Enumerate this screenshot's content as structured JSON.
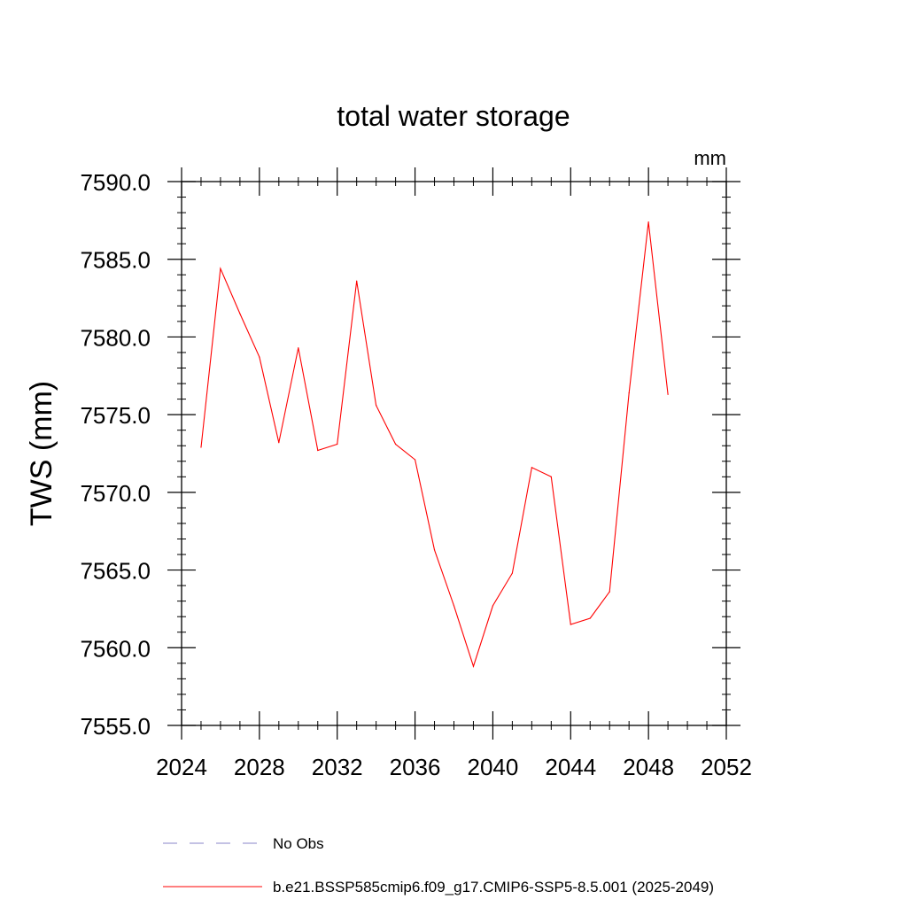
{
  "chart_data": {
    "type": "line",
    "title": "total water storage",
    "units_label": "mm",
    "ylabel": "TWS  (mm)",
    "xlabel": "",
    "xlim": [
      2024,
      2052
    ],
    "ylim": [
      7555.0,
      7590.0
    ],
    "x_ticks": [
      2024,
      2028,
      2032,
      2036,
      2040,
      2044,
      2048,
      2052
    ],
    "x_tick_labels": [
      "2024",
      "2028",
      "2032",
      "2036",
      "2040",
      "2044",
      "2048",
      "2052"
    ],
    "y_ticks": [
      7555,
      7560,
      7565,
      7570,
      7575,
      7580,
      7585,
      7590
    ],
    "y_tick_labels": [
      "7555.0",
      "7560.0",
      "7565.0",
      "7570.0",
      "7575.0",
      "7580.0",
      "7585.0",
      "7590.0"
    ],
    "grid": false,
    "legend_position": "bottom",
    "series": [
      {
        "name": "b.e21.BSSP585cmip6.f09_g17.CMIP6-SSP5-8.5.001 (2025-2049)",
        "color": "#ff0000",
        "style": "solid",
        "x": [
          2025,
          2026,
          2027,
          2028,
          2029,
          2030,
          2031,
          2032,
          2033,
          2034,
          2035,
          2036,
          2037,
          2038,
          2039,
          2040,
          2041,
          2042,
          2043,
          2044,
          2045,
          2046,
          2047,
          2048,
          2049
        ],
        "values": [
          7572.9,
          7584.4,
          7581.5,
          7578.7,
          7573.2,
          7579.3,
          7572.7,
          7573.1,
          7583.6,
          7575.6,
          7573.1,
          7572.1,
          7566.3,
          7562.7,
          7558.8,
          7562.7,
          7564.8,
          7571.6,
          7571.0,
          7561.5,
          7561.9,
          7563.6,
          7576.4,
          7587.4,
          7576.3
        ]
      }
    ],
    "legend": [
      {
        "label": "No Obs",
        "color": "#8a84c8",
        "style": "dashed"
      },
      {
        "label": "b.e21.BSSP585cmip6.f09_g17.CMIP6-SSP5-8.5.001 (2025-2049)",
        "color": "#ff0000",
        "style": "solid"
      }
    ]
  }
}
